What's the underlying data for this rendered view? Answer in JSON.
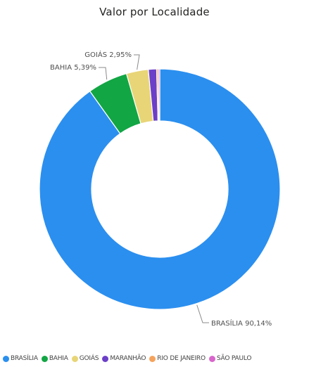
{
  "chart_data": {
    "type": "pie",
    "title": "Valor por Localidade",
    "categories": [
      "BRASÍLIA",
      "BAHIA",
      "GOIÁS",
      "MARANHÃO",
      "RIO DE JANEIRO",
      "SÃO PAULO"
    ],
    "values": [
      90.14,
      5.39,
      2.95,
      1.1,
      0.22,
      0.2
    ],
    "data_labels": [
      "BRASÍLIA 90,14%",
      "BAHIA 5,39%",
      "GOIÁS 2,95%",
      "",
      "",
      ""
    ],
    "colors": [
      "#2B8FEF",
      "#12A644",
      "#E8D577",
      "#6B3FC8",
      "#F5A35C",
      "#D966CC"
    ],
    "donut": true,
    "legend_position": "bottom-left"
  }
}
